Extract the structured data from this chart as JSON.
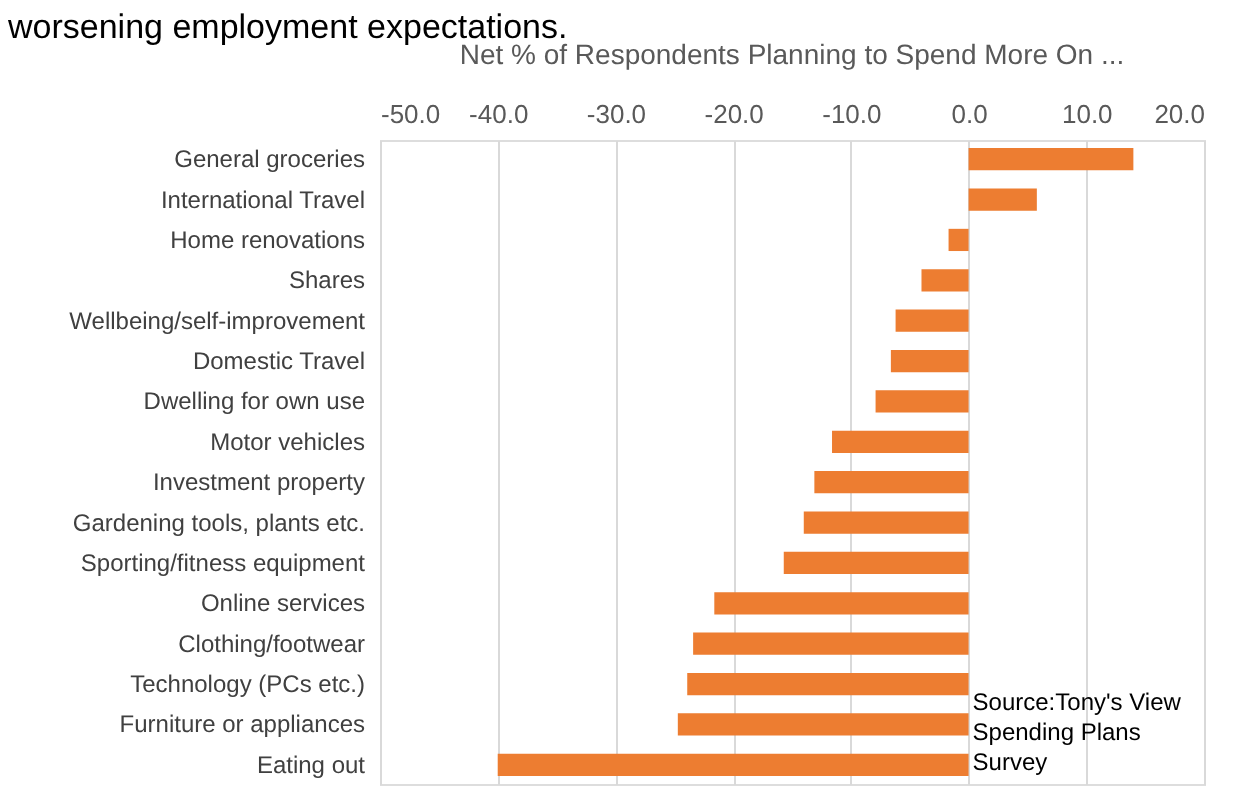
{
  "chart_data": {
    "type": "bar",
    "orientation": "horizontal",
    "title": "Net % of Respondents Planning to Spend More On ...",
    "categories": [
      "General groceries",
      "International Travel",
      "Home renovations",
      "Shares",
      "Wellbeing/self-improvement",
      "Domestic Travel",
      "Dwelling for own use",
      "Motor vehicles",
      "Investment property",
      "Gardening tools, plants etc.",
      "Sporting/fitness equipment",
      "Online services",
      "Clothing/footwear",
      "Technology (PCs etc.)",
      "Furniture or appliances",
      "Eating out"
    ],
    "values": [
      14.0,
      5.8,
      -1.7,
      -4.0,
      -6.2,
      -6.6,
      -7.9,
      -11.6,
      -13.1,
      -14.0,
      -15.7,
      -21.6,
      -23.4,
      -23.9,
      -24.7,
      -40.0
    ],
    "color": "#ed7d31",
    "xlim": [
      -50,
      20
    ],
    "xticks": [
      {
        "value": -50,
        "label": "-50.0"
      },
      {
        "value": -40,
        "label": "-40.0"
      },
      {
        "value": -30,
        "label": "-30.0"
      },
      {
        "value": -20,
        "label": "-20.0"
      },
      {
        "value": -10,
        "label": "-10.0"
      },
      {
        "value": 0,
        "label": "0.0"
      },
      {
        "value": 10,
        "label": "10.0"
      },
      {
        "value": 20,
        "label": "20.0"
      }
    ],
    "grid": "x",
    "annotations": [
      "worsening employment expectations.",
      "Source:Tony's View Spending Plans Survey"
    ]
  }
}
